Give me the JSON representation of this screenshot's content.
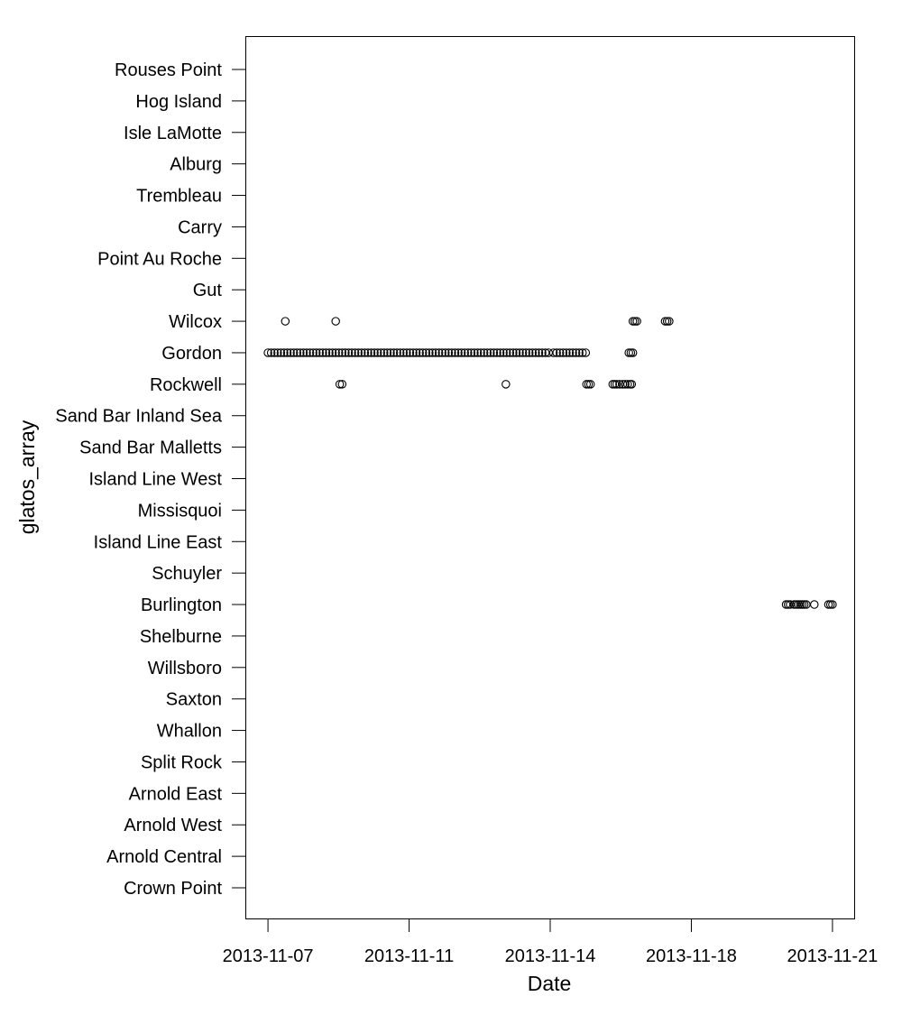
{
  "chart_data": {
    "type": "scatter",
    "title": "",
    "xlabel": "Date",
    "ylabel": "glatos_array",
    "x_tick_labels": [
      "2013-11-07",
      "2013-11-11",
      "2013-11-14",
      "2013-11-18",
      "2013-11-21"
    ],
    "x_tick_values": [
      0,
      3.5,
      7,
      10.5,
      14
    ],
    "xlim": [
      -0.55,
      14.55
    ],
    "categories": [
      "Crown Point",
      "Arnold Central",
      "Arnold West",
      "Arnold East",
      "Split Rock",
      "Whallon",
      "Saxton",
      "Willsboro",
      "Shelburne",
      "Burlington",
      "Schuyler",
      "Island Line East",
      "Missisquoi",
      "Island Line West",
      "Sand Bar Malletts",
      "Sand Bar Inland Sea",
      "Rockwell",
      "Gordon",
      "Wilcox",
      "Gut",
      "Point Au Roche",
      "Carry",
      "Trembleau",
      "Alburg",
      "Isle LaMotte",
      "Hog Island",
      "Rouses Point"
    ],
    "grid": false,
    "legend": "none",
    "marker": "open-circle",
    "color": "#000000",
    "points": [
      {
        "category": "Wilcox",
        "x": [
          0.43,
          1.68,
          9.05,
          9.1,
          9.15,
          9.85,
          9.9,
          9.95
        ]
      },
      {
        "category": "Gordon",
        "x": [
          0.0,
          0.08,
          0.16,
          0.24,
          0.32,
          0.4,
          0.48,
          0.56,
          0.64,
          0.72,
          0.8,
          0.88,
          0.96,
          1.04,
          1.12,
          1.2,
          1.28,
          1.36,
          1.44,
          1.52,
          1.6,
          1.68,
          1.76,
          1.84,
          1.92,
          2.0,
          2.08,
          2.16,
          2.24,
          2.32,
          2.4,
          2.48,
          2.56,
          2.64,
          2.72,
          2.8,
          2.88,
          2.96,
          3.04,
          3.12,
          3.2,
          3.28,
          3.36,
          3.44,
          3.52,
          3.6,
          3.68,
          3.76,
          3.84,
          3.92,
          4.0,
          4.08,
          4.16,
          4.24,
          4.32,
          4.4,
          4.48,
          4.56,
          4.64,
          4.72,
          4.8,
          4.88,
          4.96,
          5.04,
          5.12,
          5.2,
          5.28,
          5.36,
          5.44,
          5.52,
          5.6,
          5.68,
          5.76,
          5.84,
          5.92,
          6.0,
          6.08,
          6.16,
          6.24,
          6.32,
          6.4,
          6.48,
          6.56,
          6.64,
          6.72,
          6.8,
          6.88,
          6.96,
          7.08,
          7.16,
          7.24,
          7.32,
          7.4,
          7.48,
          7.56,
          7.64,
          7.72,
          7.8,
          7.88,
          8.95,
          9.0,
          9.05
        ]
      },
      {
        "category": "Rockwell",
        "x": [
          1.78,
          1.84,
          5.9,
          7.9,
          7.95,
          8.0,
          8.55,
          8.6,
          8.65,
          8.72,
          8.8,
          8.86,
          8.92,
          8.98,
          9.02
        ]
      },
      {
        "category": "Burlington",
        "x": [
          12.85,
          12.9,
          12.95,
          13.05,
          13.1,
          13.15,
          13.2,
          13.25,
          13.3,
          13.35,
          13.55,
          13.9,
          13.95,
          14.0
        ]
      }
    ]
  }
}
